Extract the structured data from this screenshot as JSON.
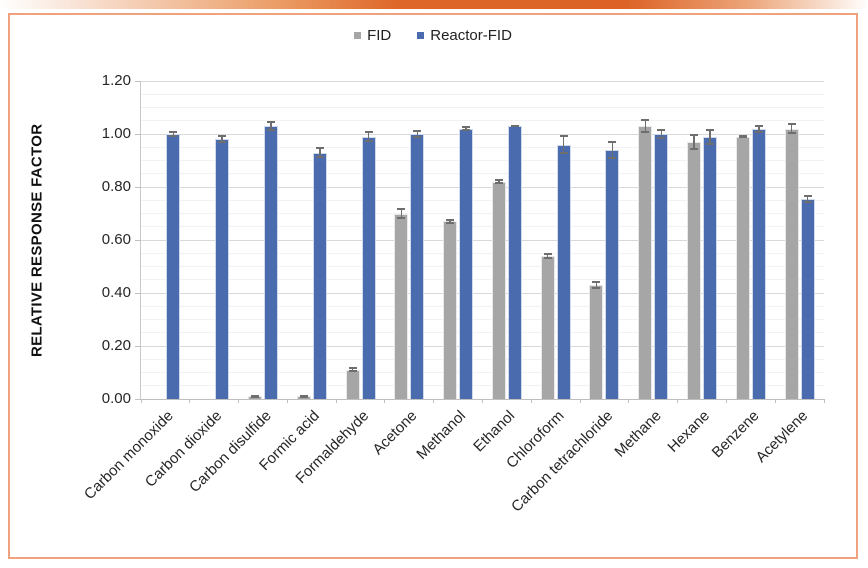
{
  "theme": {
    "top_bar_gradient_stops": [
      "#ffffff 0%",
      "#f8dfd0 10%",
      "#eb9d66 32%",
      "#de6628 46%",
      "#dc6226 72%",
      "#eca478 86%",
      "#f9e3d5 96%",
      "#ffffff 100%"
    ],
    "card_border_color": "#f0a27d",
    "major_gridline_color": "#d9d9d9",
    "minor_gridline_color": "#f2f2f2",
    "error_bar_color": "#6e6e6e"
  },
  "chart_data": {
    "type": "bar",
    "title": "",
    "xlabel": "",
    "ylabel": "RELATIVE RESPONSE FACTOR",
    "ylim": [
      0,
      1.2
    ],
    "ytick_step": 0.2,
    "minor_gridline_step": 0.05,
    "ytick_labels": [
      "0.00",
      "0.20",
      "0.40",
      "0.60",
      "0.80",
      "1.00",
      "1.20"
    ],
    "grid": true,
    "legend_position": "top-center",
    "categories": [
      "Carbon monoxide",
      "Carbon dioxide",
      "Carbon disulfide",
      "Formic acid",
      "Formaldehyde",
      "Acetone",
      "Methanol",
      "Ethanol",
      "Chloroform",
      "Carbon tetrachloride",
      "Methane",
      "Hexane",
      "Benzene",
      "Acetylene"
    ],
    "series": [
      {
        "name": "FID",
        "color": "#a6a6a6",
        "values": [
          0,
          0,
          0.01,
          0.01,
          0.11,
          0.7,
          0.67,
          0.82,
          0.54,
          0.43,
          1.03,
          0.97,
          0.99,
          1.02
        ],
        "errors": [
          0,
          0,
          0.005,
          0.005,
          0.01,
          0.02,
          0.01,
          0.01,
          0.01,
          0.015,
          0.025,
          0.03,
          0.005,
          0.02
        ]
      },
      {
        "name": "Reactor-FID",
        "color": "#4a6bad",
        "values": [
          1.0,
          0.98,
          1.03,
          0.93,
          0.99,
          1.0,
          1.02,
          1.03,
          0.96,
          0.94,
          1.0,
          0.99,
          1.02,
          0.755
        ],
        "errors": [
          0.01,
          0.015,
          0.02,
          0.02,
          0.02,
          0.015,
          0.01,
          0.005,
          0.035,
          0.035,
          0.02,
          0.03,
          0.015,
          0.015
        ]
      }
    ]
  }
}
